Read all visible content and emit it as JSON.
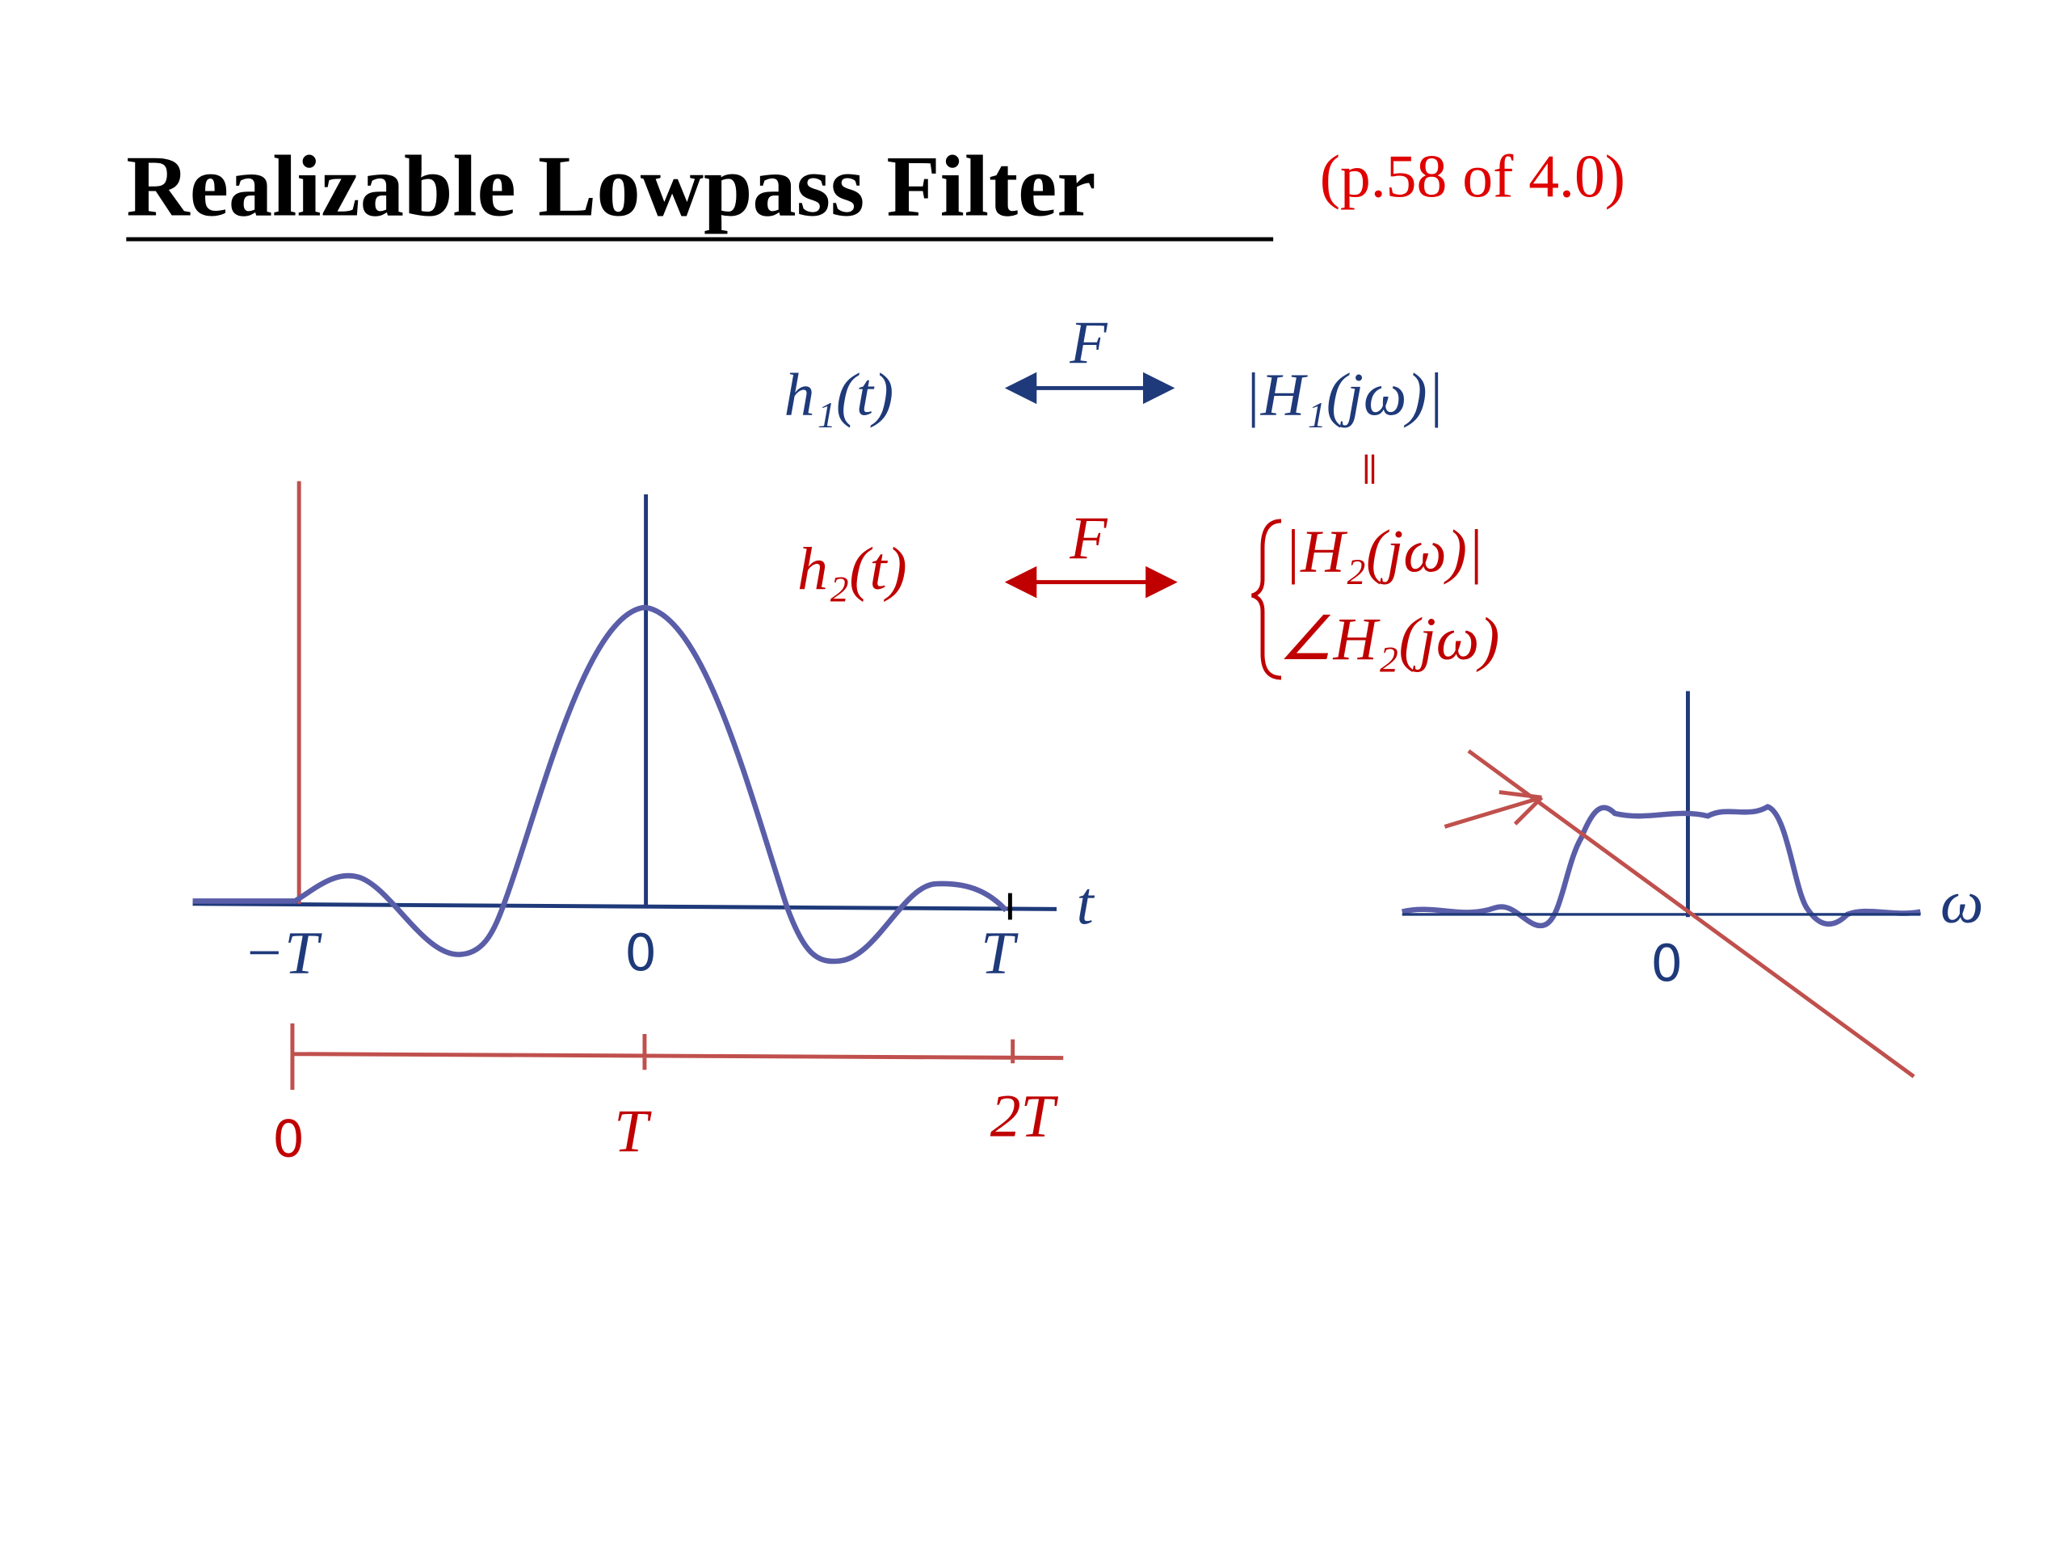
{
  "header": {
    "title": "Realizable Lowpass Filter",
    "reference": "(p.58 of 4.0)"
  },
  "relations": [
    {
      "signal": "h₁(t)",
      "operator": "F",
      "spectrum": "|H₁(jω)|"
    },
    {
      "signal": "h₂(t)",
      "operator": "F",
      "magnitude": "|H₂(jω)|",
      "phase": "∠H₂(jω)"
    }
  ],
  "time_plot": {
    "tick_labels": [
      "−T",
      "0",
      "T"
    ],
    "axis_label": "t"
  },
  "shifted_axis": {
    "tick_labels": [
      "0",
      "T",
      "2T"
    ]
  },
  "frequency_plot": {
    "tick_labels": [
      "0"
    ],
    "axis_label": "ω"
  }
}
